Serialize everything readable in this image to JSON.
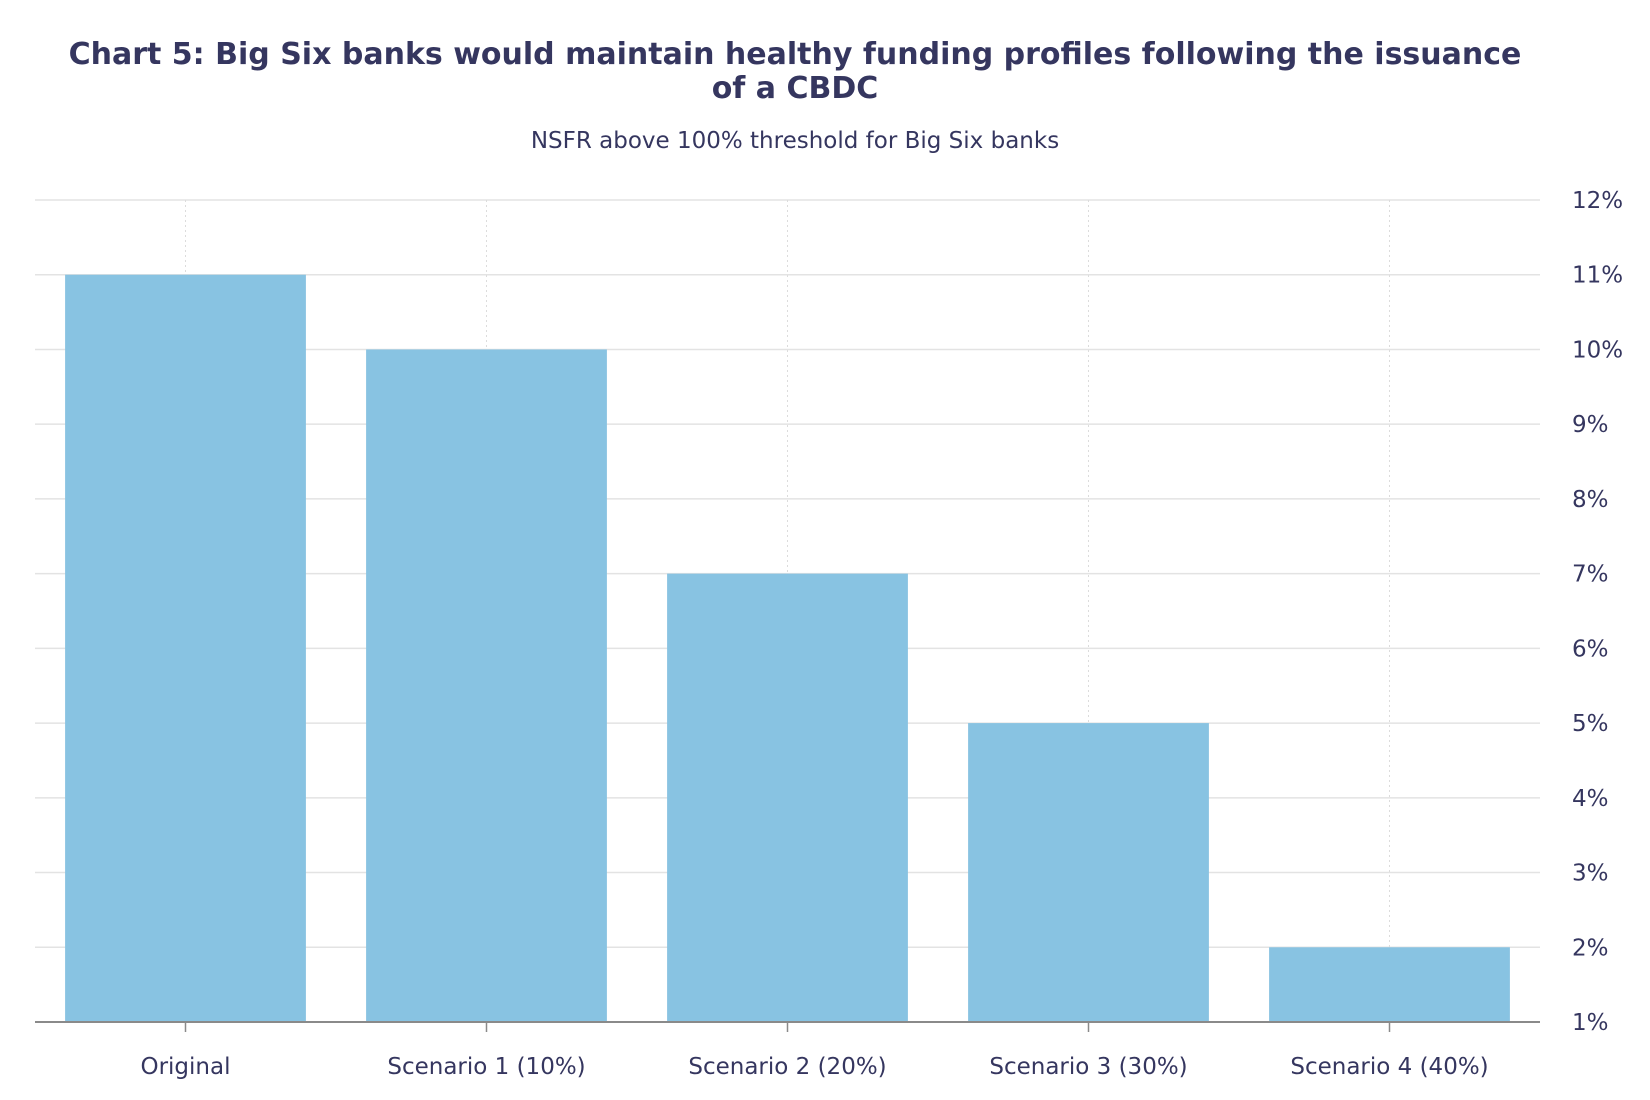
{
  "chart_data": {
    "type": "bar",
    "title": "Chart 5: Big Six banks would maintain healthy funding profiles following the issuance of a CBDC",
    "subtitle": "NSFR above 100% threshold for Big Six banks",
    "categories": [
      "Original",
      "Scenario 1 (10%)",
      "Scenario 2 (20%)",
      "Scenario 3 (30%)",
      "Scenario 4 (40%)"
    ],
    "values": [
      11,
      10,
      7,
      5,
      2
    ],
    "ylim": [
      1,
      12
    ],
    "yticks": [
      1,
      2,
      3,
      4,
      5,
      6,
      7,
      8,
      9,
      10,
      11,
      12
    ],
    "ytick_suffix": "%",
    "y_axis_side": "right",
    "grid": true,
    "bar_color": "#86c2e1"
  }
}
